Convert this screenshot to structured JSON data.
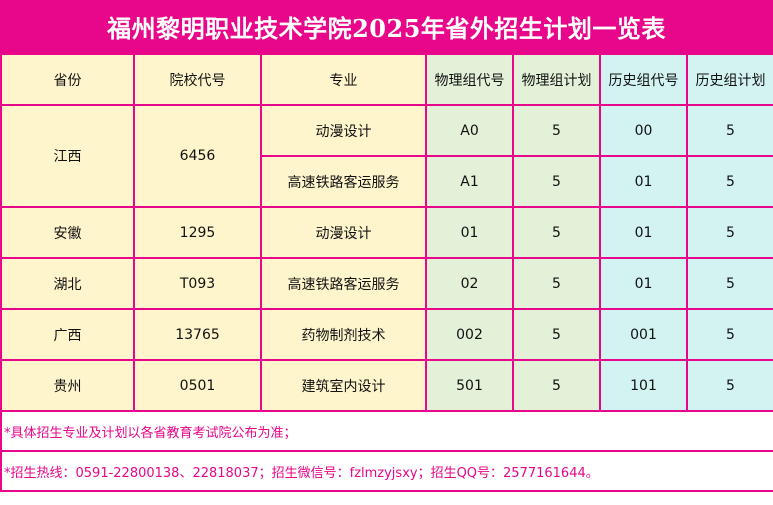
{
  "title": "福州黎明职业技术学院2025年省外招生计划一览表",
  "headers": [
    "省份",
    "院校代号",
    "专业",
    "物理组代号",
    "物理组计划",
    "历史组代号",
    "历史组计划"
  ],
  "rows": [
    {
      "province": "江西",
      "school_code": "6456",
      "majors": [
        {
          "major": "动漫设计",
          "phys_code": "A0",
          "phys_plan": "5",
          "hist_code": "00",
          "hist_plan": "5"
        },
        {
          "major": "高速铁路客运服务",
          "phys_code": "A1",
          "phys_plan": "5",
          "hist_code": "01",
          "hist_plan": "5"
        }
      ]
    },
    {
      "province": "安徽",
      "school_code": "1295",
      "majors": [
        {
          "major": "动漫设计",
          "phys_code": "01",
          "phys_plan": "5",
          "hist_code": "01",
          "hist_plan": "5"
        }
      ]
    },
    {
      "province": "湖北",
      "school_code": "T093",
      "majors": [
        {
          "major": "高速铁路客运服务",
          "phys_code": "02",
          "phys_plan": "5",
          "hist_code": "01",
          "hist_plan": "5"
        }
      ]
    },
    {
      "province": "广西",
      "school_code": "13765",
      "majors": [
        {
          "major": "药物制剂技术",
          "phys_code": "002",
          "phys_plan": "5",
          "hist_code": "001",
          "hist_plan": "5"
        }
      ]
    },
    {
      "province": "贵州",
      "school_code": "0501",
      "majors": [
        {
          "major": "建筑室内设计",
          "phys_code": "501",
          "phys_plan": "5",
          "hist_code": "101",
          "hist_plan": "5"
        }
      ]
    }
  ],
  "notes": [
    "*具体招生专业及计划以各省教育考试院公布为准；",
    "*招生热线：0591-22800138、22818037；招生微信号：fzlmzyjsxy；招生QQ号：2577161644。"
  ],
  "colors": {
    "accent": "#e8068a",
    "left_bg": "#fff5cc",
    "physics_bg": "#e3f1d9",
    "history_bg": "#d3f3f3"
  }
}
